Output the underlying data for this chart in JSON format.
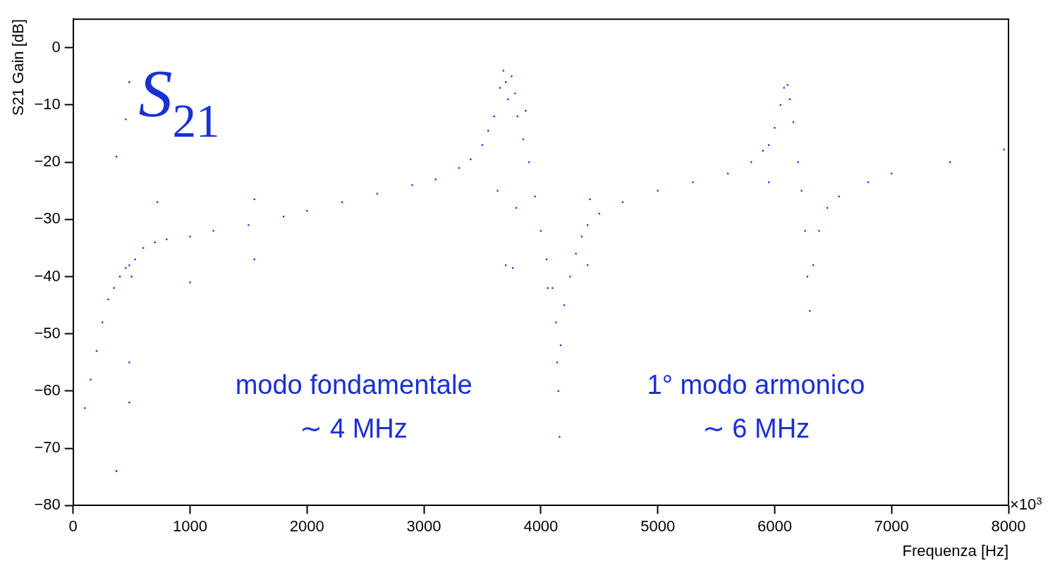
{
  "chart_data": {
    "type": "scatter",
    "xlabel": "Frequenza [Hz]",
    "ylabel": "S21 Gain [dB]",
    "annotations": [
      "S$_{21}$",
      "modo fondamentale",
      "∼ 4 MHz",
      "1° modo armonico",
      "∼ 6 MHz",
      "×10$^{3}$"
    ],
    "xlim": [
      0,
      8000
    ],
    "xticks": [
      0,
      1000,
      2000,
      3000,
      4000,
      5000,
      6000,
      7000,
      8000
    ],
    "ylim": [
      -80,
      5
    ],
    "yticks": [
      -80,
      -70,
      -60,
      -50,
      -40,
      -30,
      -20,
      -10,
      0
    ],
    "grid": false,
    "legend": false,
    "marker": "square",
    "series": [
      {
        "color": "#1f1fff",
        "x": [
          100,
          150,
          200,
          250,
          300,
          350,
          400,
          450,
          480,
          500,
          530,
          600,
          700,
          800,
          1000,
          1200,
          1500,
          1800,
          2000,
          2300,
          2600,
          2900,
          3100,
          3300,
          3400,
          3500,
          3550,
          3600,
          3650,
          3680,
          3700,
          3720,
          3750,
          3780,
          3800,
          3850,
          3870,
          3900,
          3950,
          4000,
          4050,
          4100,
          4130,
          4140,
          4150,
          4160,
          4170,
          4200,
          4250,
          4300,
          4350,
          4400,
          4500,
          4700,
          5000,
          5300,
          5600,
          5800,
          5900,
          5950,
          6000,
          6050,
          6080,
          6110,
          6130,
          6160,
          6200,
          6230,
          6260,
          6280,
          6300,
          6330,
          6380,
          6450,
          6550,
          6800,
          7000,
          7500,
          7960,
          480,
          450,
          370,
          370,
          480,
          480,
          720,
          1000,
          1550,
          1550,
          3630,
          3700,
          3760,
          3790,
          4060,
          4420,
          4400,
          5950
        ],
        "values": [
          -63,
          -58,
          -53,
          -48,
          -44,
          -42,
          -40,
          -38.5,
          -38,
          -40,
          -37,
          -35,
          -34,
          -33.5,
          -33,
          -32,
          -31,
          -29.5,
          -28.5,
          -27,
          -25.5,
          -24,
          -23,
          -21,
          -19.5,
          -17,
          -14.5,
          -12,
          -7,
          -4,
          -6,
          -9,
          -5,
          -8,
          -12,
          -16,
          -11,
          -20,
          -26,
          -32,
          -37,
          -42,
          -48,
          -55,
          -60,
          -68,
          -52,
          -45,
          -40,
          -36,
          -33,
          -31,
          -29,
          -27,
          -25,
          -23.5,
          -22,
          -20,
          -18,
          -17,
          -14,
          -10,
          -7,
          -6.5,
          -9,
          -13,
          -20,
          -25,
          -32,
          -40,
          -46,
          -38,
          -32,
          -28,
          -26,
          -23.5,
          -22,
          -20,
          -17.8,
          -6,
          -12.5,
          -19,
          -74,
          -62,
          -55,
          -27,
          -41,
          -37,
          -26.5,
          -25,
          -38,
          -38.5,
          -28,
          -42,
          -26.5,
          -38,
          -23.5
        ]
      }
    ]
  }
}
